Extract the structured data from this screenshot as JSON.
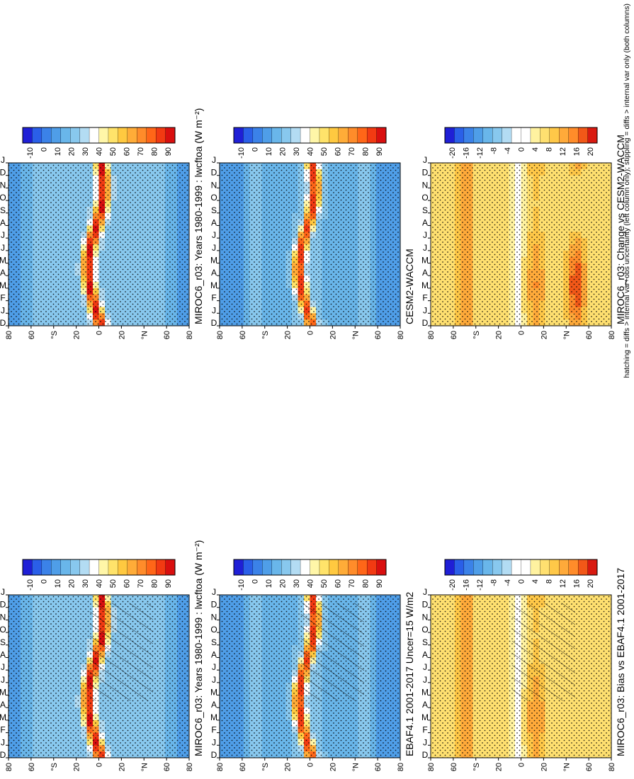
{
  "figure": {
    "footnote": "hatching = diffs > internal var+obs uncertainty (left column only); stippling = diffs > internal var only (both columns)"
  },
  "colors": {
    "abs_scale": [
      "#1f1fd6",
      "#2a5fe8",
      "#3b82e8",
      "#4f9ee8",
      "#69b6ea",
      "#88c8ee",
      "#b3dcf3",
      "#ffffff",
      "#fff6a8",
      "#ffe36a",
      "#ffc940",
      "#ffac38",
      "#ff8c2a",
      "#ff6618",
      "#f23a12",
      "#d90f0f"
    ],
    "diff_scale": [
      "#1f1fd6",
      "#2a5fe8",
      "#3b82e8",
      "#4f9ee8",
      "#69b6ea",
      "#88c8ee",
      "#b3dcf3",
      "#ffffff",
      "#ffffff",
      "#fff2a0",
      "#ffe070",
      "#ffc848",
      "#ffaa3a",
      "#ff8c2a",
      "#f25818",
      "#d91a10"
    ]
  },
  "chart_data": [
    {
      "id": "p1",
      "type": "heatmap",
      "title": "MIROC6_r03: Years 1980-1999 : lwcftoa (W m⁻²)",
      "months": [
        "D",
        "J",
        "F",
        "M",
        "A",
        "M",
        "J",
        "J",
        "A",
        "S",
        "O",
        "N",
        "D",
        "J"
      ],
      "lat_ticks": [
        "80",
        "60",
        "°N",
        "20",
        "0",
        "20",
        "°S",
        "60",
        "80"
      ],
      "colorbar_labels": [
        "90",
        "80",
        "70",
        "60",
        "50",
        "40",
        "30",
        "20",
        "10",
        "0",
        "-10"
      ],
      "scale": "abs",
      "hatch": true
    },
    {
      "id": "p2",
      "type": "heatmap",
      "title": "MIROC6_r03: Years 1980-1999 : lwcftoa (W m⁻²)",
      "months": [
        "D",
        "J",
        "F",
        "M",
        "A",
        "M",
        "J",
        "J",
        "A",
        "S",
        "O",
        "N",
        "D",
        "J"
      ],
      "lat_ticks": [
        "80",
        "60",
        "°N",
        "20",
        "0",
        "20",
        "°S",
        "60",
        "80"
      ],
      "colorbar_labels": [
        "90",
        "80",
        "70",
        "60",
        "50",
        "40",
        "30",
        "20",
        "10",
        "0",
        "-10"
      ],
      "scale": "abs",
      "hatch": false
    },
    {
      "id": "p3",
      "type": "heatmap",
      "title": "EBAF4.1 2001-2017 Uncer=15 W/m2",
      "months": [
        "D",
        "J",
        "F",
        "M",
        "A",
        "M",
        "J",
        "J",
        "A",
        "S",
        "O",
        "N",
        "D",
        "J"
      ],
      "lat_ticks": [
        "80",
        "60",
        "°N",
        "20",
        "0",
        "20",
        "°S",
        "60",
        "80"
      ],
      "colorbar_labels": [
        "90",
        "80",
        "70",
        "60",
        "50",
        "40",
        "30",
        "20",
        "10",
        "0",
        "-10"
      ],
      "scale": "abs",
      "hatch": true
    },
    {
      "id": "p4",
      "type": "heatmap",
      "title": "CESM2-WACCM",
      "months": [
        "D",
        "J",
        "F",
        "M",
        "A",
        "M",
        "J",
        "J",
        "A",
        "S",
        "O",
        "N",
        "D",
        "J"
      ],
      "lat_ticks": [
        "80",
        "60",
        "°N",
        "20",
        "0",
        "20",
        "°S",
        "60",
        "80"
      ],
      "colorbar_labels": [
        "90",
        "80",
        "70",
        "60",
        "50",
        "40",
        "30",
        "20",
        "10",
        "0",
        "-10"
      ],
      "scale": "abs",
      "hatch": false
    },
    {
      "id": "p5",
      "type": "heatmap",
      "title": "MIROC6_r03: Bias vs EBAF4.1 2001-2017",
      "months": [
        "D",
        "J",
        "F",
        "M",
        "A",
        "M",
        "J",
        "J",
        "A",
        "S",
        "O",
        "N",
        "D",
        "J"
      ],
      "lat_ticks": [
        "80",
        "60",
        "°N",
        "20",
        "0",
        "20",
        "°S",
        "60",
        "80"
      ],
      "colorbar_labels": [
        "20",
        "16",
        "12",
        "8",
        "4",
        "0",
        "-4",
        "-8",
        "-12",
        "-16",
        "-20"
      ],
      "scale": "diff",
      "hatch": true
    },
    {
      "id": "p6",
      "type": "heatmap",
      "title": "MIROC6_r03: Change vs CESM2-WACCM",
      "months": [
        "D",
        "J",
        "F",
        "M",
        "A",
        "M",
        "J",
        "J",
        "A",
        "S",
        "O",
        "N",
        "D",
        "J"
      ],
      "lat_ticks": [
        "80",
        "60",
        "°N",
        "20",
        "0",
        "20",
        "°S",
        "60",
        "80"
      ],
      "colorbar_labels": [
        "20",
        "16",
        "12",
        "8",
        "4",
        "0",
        "-4",
        "-8",
        "-12",
        "-16",
        "-20"
      ],
      "scale": "diff",
      "hatch": false
    }
  ]
}
